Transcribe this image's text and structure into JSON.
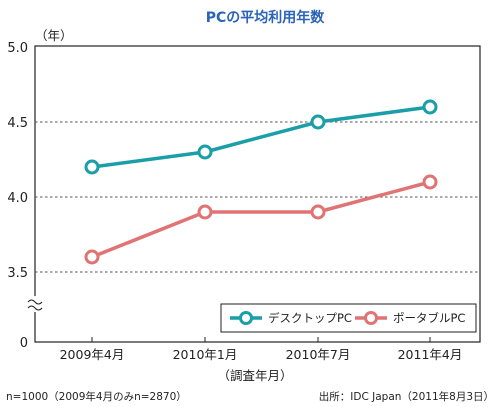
{
  "chart_data": {
    "type": "line",
    "title": "PCの平均利用年数",
    "ylabel": "（年）",
    "xlabel": "（調査年月）",
    "categories": [
      "2009年4月",
      "2010年1月",
      "2010年7月",
      "2011年4月"
    ],
    "series": [
      {
        "name": "デスクトップPC",
        "values": [
          4.2,
          4.3,
          4.5,
          4.6
        ],
        "color": "#1a9ea8"
      },
      {
        "name": "ポータブルPC",
        "values": [
          3.6,
          3.9,
          3.9,
          4.1
        ],
        "color": "#e07474"
      }
    ],
    "yticks": [
      "5.0",
      "4.5",
      "4.0",
      "3.5",
      "0"
    ],
    "ylim": [
      3.0,
      5.0
    ],
    "axis_break": true,
    "grid": "dashed horizontal at 4.5, 4.0, 3.5",
    "legend_position": "bottom-right inside plot",
    "note_left": "n=1000（2009年4月のみn=2870）",
    "note_right": "出所：IDC Japan（2011年8月3日）"
  }
}
